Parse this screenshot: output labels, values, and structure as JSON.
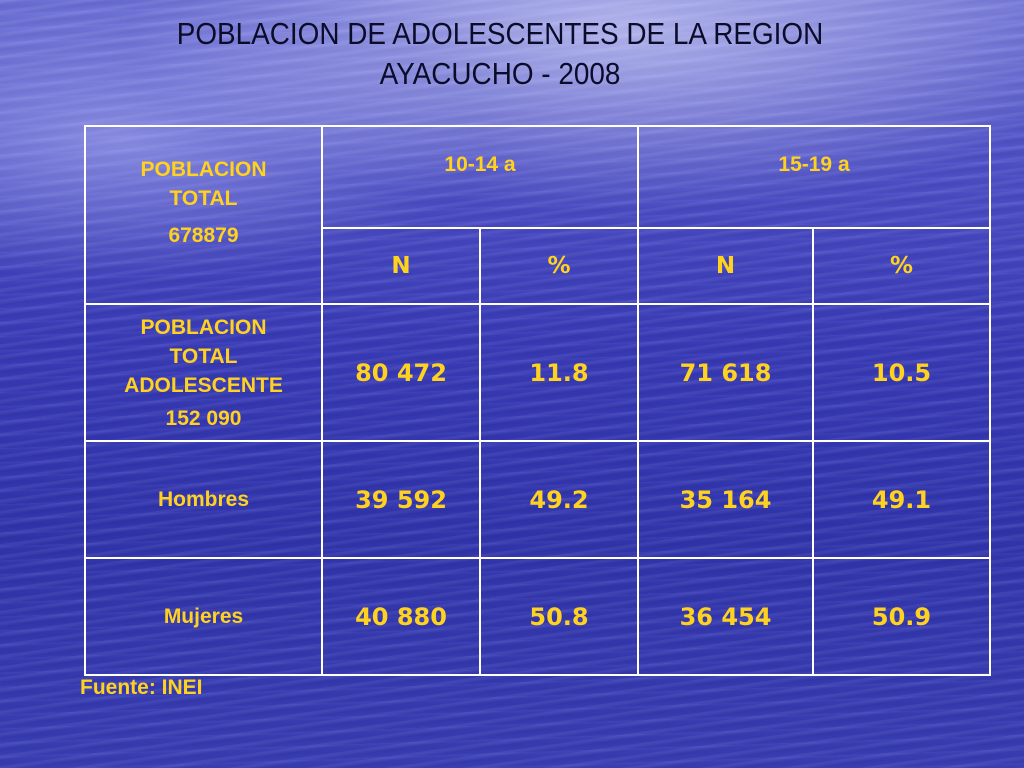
{
  "title": {
    "line1": "POBLACION DE ADOLESCENTES DE LA REGION",
    "line2": "AYACUCHO - 2008"
  },
  "table": {
    "header_label_line1": "POBLACION",
    "header_label_line2": "TOTAL",
    "header_total": "678879",
    "groups": [
      "10-14 a",
      "15-19 a"
    ],
    "subheaders": [
      "N",
      "%",
      "N",
      "%"
    ],
    "rows": [
      {
        "label_lines": [
          "POBLACION",
          "TOTAL",
          "ADOLESCENTE"
        ],
        "label_total": "152 090",
        "values": [
          "80 472",
          "11.8",
          "71 618",
          "10.5"
        ]
      },
      {
        "label": "Hombres",
        "values": [
          "39 592",
          "49.2",
          "35 164",
          "49.1"
        ]
      },
      {
        "label": "Mujeres",
        "values": [
          "40 880",
          "50.8",
          "36 454",
          "50.9"
        ]
      }
    ]
  },
  "source": "Fuente: INEI",
  "colors": {
    "cell_text": "#ffd21f",
    "grid_lines": "#ffffff",
    "title_text": "#0b0b2a"
  }
}
